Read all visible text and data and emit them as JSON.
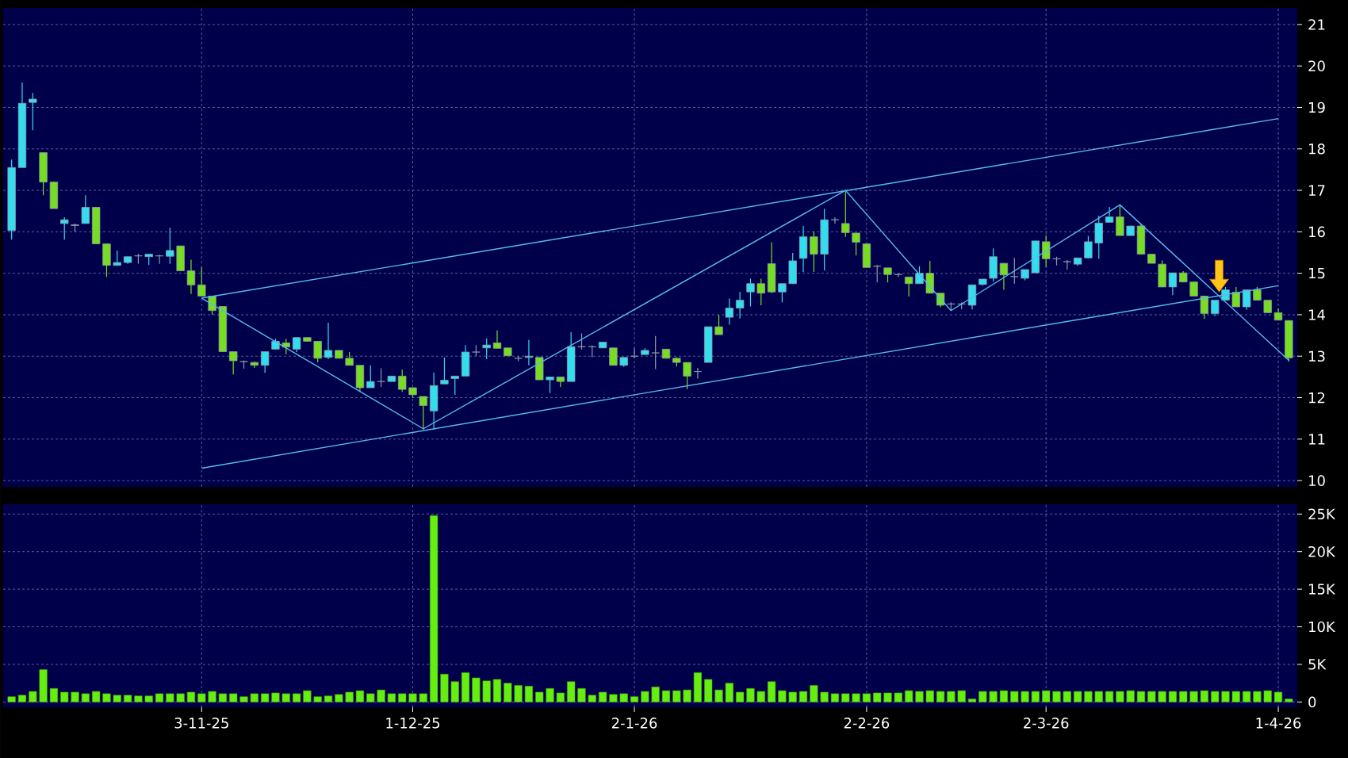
{
  "chart_data": [
    {
      "type": "candlestick",
      "categories": [
        null,
        null,
        null,
        null,
        null,
        null,
        null,
        null,
        null,
        null,
        null,
        null,
        null,
        null,
        null,
        null,
        null,
        null,
        null,
        null,
        null,
        null,
        null,
        null,
        null,
        null,
        null,
        null,
        null,
        null,
        null,
        null,
        null,
        null,
        null,
        null,
        null,
        null,
        null,
        null,
        null,
        null,
        null,
        null,
        null,
        null,
        null,
        null,
        null,
        null,
        null,
        null,
        null,
        null,
        null,
        null,
        null,
        null,
        null,
        null,
        null,
        null,
        null,
        null,
        null,
        null,
        null,
        null,
        null,
        null,
        null,
        null,
        null,
        null,
        null,
        null,
        null,
        null,
        null,
        null,
        null,
        null,
        null,
        null,
        null,
        null,
        null,
        null,
        null,
        null,
        null,
        null,
        null,
        null,
        null,
        null,
        null,
        null,
        null,
        null,
        null,
        null,
        null,
        null,
        null,
        null,
        null,
        null,
        null,
        null,
        null,
        null,
        null,
        null,
        null,
        null,
        null,
        null,
        null,
        null,
        null,
        null
      ],
      "ohlc": [
        [
          16.03,
          17.74,
          15.81,
          17.55
        ],
        [
          17.55,
          19.6,
          17.55,
          19.1
        ],
        [
          19.12,
          19.35,
          18.45,
          19.2
        ],
        [
          17.91,
          17.91,
          16.88,
          17.2
        ],
        [
          17.2,
          17.2,
          16.56,
          16.56
        ],
        [
          16.2,
          16.35,
          15.81,
          16.29
        ],
        [
          16.17,
          16.2,
          16.0,
          16.15
        ],
        [
          16.2,
          16.88,
          16.2,
          16.59
        ],
        [
          16.59,
          16.59,
          15.71,
          15.71
        ],
        [
          15.71,
          15.71,
          14.91,
          15.19
        ],
        [
          15.19,
          15.55,
          15.19,
          15.26
        ],
        [
          15.26,
          15.4,
          15.23,
          15.4
        ],
        [
          15.42,
          15.47,
          15.23,
          15.42
        ],
        [
          15.4,
          15.46,
          15.2,
          15.46
        ],
        [
          15.42,
          15.45,
          15.23,
          15.42
        ],
        [
          15.41,
          16.1,
          15.23,
          15.55
        ],
        [
          15.66,
          15.66,
          15.06,
          15.06
        ],
        [
          15.06,
          15.33,
          14.5,
          14.72
        ],
        [
          14.72,
          15.14,
          14.45,
          14.45
        ],
        [
          14.45,
          14.45,
          14.0,
          14.1
        ],
        [
          14.2,
          14.2,
          13.11,
          13.11
        ],
        [
          13.11,
          13.11,
          12.56,
          12.89
        ],
        [
          12.87,
          12.9,
          12.7,
          12.87
        ],
        [
          12.85,
          12.87,
          12.72,
          12.78
        ],
        [
          12.78,
          13.11,
          12.6,
          13.11
        ],
        [
          13.17,
          13.42,
          13.17,
          13.36
        ],
        [
          13.32,
          13.42,
          13.05,
          13.22
        ],
        [
          13.17,
          13.45,
          13.1,
          13.45
        ],
        [
          13.45,
          13.45,
          13.36,
          13.36
        ],
        [
          13.36,
          13.36,
          12.85,
          12.95
        ],
        [
          12.97,
          13.81,
          12.93,
          13.14
        ],
        [
          13.14,
          13.14,
          12.95,
          12.95
        ],
        [
          12.95,
          13.1,
          12.78,
          12.78
        ],
        [
          12.78,
          12.78,
          12.14,
          12.24
        ],
        [
          12.24,
          12.78,
          12.24,
          12.39
        ],
        [
          12.39,
          12.71,
          12.26,
          12.39
        ],
        [
          12.39,
          12.52,
          12.39,
          12.52
        ],
        [
          12.52,
          12.68,
          12.14,
          12.2
        ],
        [
          12.24,
          12.24,
          12.0,
          12.07
        ],
        [
          12.03,
          12.03,
          11.23,
          11.81
        ],
        [
          11.68,
          12.61,
          11.23,
          12.29
        ],
        [
          12.33,
          12.97,
          12.33,
          12.42
        ],
        [
          12.46,
          12.52,
          12.07,
          12.52
        ],
        [
          12.52,
          13.27,
          12.52,
          13.1
        ],
        [
          13.1,
          13.27,
          13.0,
          13.1
        ],
        [
          13.2,
          13.43,
          12.93,
          13.27
        ],
        [
          13.32,
          13.62,
          13.19,
          13.19
        ],
        [
          13.2,
          13.2,
          13.01,
          13.01
        ],
        [
          12.95,
          13.0,
          12.88,
          12.95
        ],
        [
          12.97,
          13.39,
          12.78,
          13.0
        ],
        [
          12.97,
          12.97,
          12.43,
          12.43
        ],
        [
          12.43,
          12.5,
          12.11,
          12.5
        ],
        [
          12.5,
          12.5,
          12.26,
          12.39
        ],
        [
          12.39,
          13.58,
          12.39,
          13.23
        ],
        [
          13.23,
          13.55,
          13.16,
          13.23
        ],
        [
          13.23,
          13.26,
          12.97,
          13.23
        ],
        [
          13.2,
          13.34,
          13.2,
          13.34
        ],
        [
          13.2,
          13.2,
          12.78,
          12.78
        ],
        [
          12.78,
          12.97,
          12.74,
          12.97
        ],
        [
          13.0,
          13.19,
          12.95,
          13.0
        ],
        [
          13.04,
          13.19,
          13.04,
          13.14
        ],
        [
          13.08,
          13.49,
          12.69,
          13.08
        ],
        [
          13.17,
          13.17,
          12.95,
          12.95
        ],
        [
          12.95,
          12.97,
          12.75,
          12.85
        ],
        [
          12.85,
          12.85,
          12.2,
          12.52
        ],
        [
          12.63,
          12.72,
          12.46,
          12.63
        ],
        [
          12.85,
          13.71,
          12.85,
          13.71
        ],
        [
          13.71,
          14.0,
          13.52,
          13.52
        ],
        [
          13.94,
          14.39,
          13.76,
          14.16
        ],
        [
          14.16,
          14.55,
          13.91,
          14.35
        ],
        [
          14.55,
          14.87,
          14.2,
          14.75
        ],
        [
          14.75,
          14.87,
          14.23,
          14.52
        ],
        [
          15.23,
          15.75,
          14.52,
          14.55
        ],
        [
          14.55,
          14.75,
          14.3,
          14.75
        ],
        [
          14.75,
          15.49,
          14.75,
          15.3
        ],
        [
          15.36,
          16.14,
          15.03,
          15.88
        ],
        [
          15.88,
          16.01,
          15.03,
          15.46
        ],
        [
          15.46,
          16.55,
          15.07,
          16.29
        ],
        [
          16.29,
          16.35,
          16.2,
          16.29
        ],
        [
          16.2,
          16.97,
          15.88,
          15.98
        ],
        [
          15.97,
          15.97,
          15.43,
          15.75
        ],
        [
          15.71,
          15.71,
          15.14,
          15.14
        ],
        [
          15.17,
          15.2,
          14.78,
          15.17
        ],
        [
          15.13,
          15.13,
          14.78,
          14.97
        ],
        [
          14.97,
          15.0,
          14.91,
          14.97
        ],
        [
          14.91,
          14.91,
          14.44,
          14.75
        ],
        [
          14.75,
          15.17,
          14.75,
          15.0
        ],
        [
          15.0,
          15.3,
          14.52,
          14.52
        ],
        [
          14.52,
          14.52,
          14.18,
          14.23
        ],
        [
          14.26,
          14.3,
          14.1,
          14.26
        ],
        [
          14.26,
          14.3,
          14.13,
          14.26
        ],
        [
          14.23,
          14.72,
          14.13,
          14.72
        ],
        [
          14.73,
          14.86,
          14.7,
          14.86
        ],
        [
          14.88,
          15.6,
          14.8,
          15.4
        ],
        [
          15.24,
          15.24,
          14.6,
          14.96
        ],
        [
          14.92,
          15.37,
          14.75,
          14.92
        ],
        [
          14.88,
          15.09,
          14.83,
          15.09
        ],
        [
          15.01,
          15.78,
          15.01,
          15.78
        ],
        [
          15.76,
          15.91,
          15.15,
          15.35
        ],
        [
          15.35,
          15.4,
          15.19,
          15.35
        ],
        [
          15.28,
          15.32,
          15.09,
          15.28
        ],
        [
          15.22,
          15.37,
          15.18,
          15.37
        ],
        [
          15.37,
          15.9,
          15.37,
          15.76
        ],
        [
          15.73,
          16.39,
          15.35,
          16.21
        ],
        [
          16.23,
          16.6,
          16.23,
          16.36
        ],
        [
          16.36,
          16.65,
          15.91,
          15.91
        ],
        [
          15.91,
          16.14,
          15.91,
          16.14
        ],
        [
          16.14,
          16.2,
          15.46,
          15.46
        ],
        [
          15.46,
          15.46,
          15.24,
          15.24
        ],
        [
          15.22,
          15.31,
          14.67,
          14.67
        ],
        [
          14.67,
          15.01,
          14.47,
          15.01
        ],
        [
          15.01,
          15.05,
          14.79,
          14.79
        ],
        [
          14.79,
          14.79,
          14.45,
          14.45
        ],
        [
          14.45,
          14.45,
          13.9,
          14.03
        ],
        [
          14.03,
          14.35,
          13.97,
          14.35
        ],
        [
          14.35,
          14.67,
          14.35,
          14.6
        ],
        [
          14.54,
          14.67,
          14.19,
          14.19
        ],
        [
          14.19,
          14.6,
          14.12,
          14.6
        ],
        [
          14.6,
          14.67,
          14.35,
          14.35
        ],
        [
          14.35,
          14.35,
          14.05,
          14.05
        ],
        [
          14.05,
          14.15,
          13.87,
          13.87
        ],
        [
          13.86,
          13.86,
          12.87,
          12.96
        ]
      ],
      "colors": [
        "#33dded",
        "#33dded",
        "#33dded",
        "#77dd22",
        "#77dd22",
        "#33dded",
        "#8f98a8",
        "#33dded",
        "#77dd22",
        "#77dd22",
        "#33dded",
        "#33dded",
        "#8f98a8",
        "#33dded",
        "#8f98a8",
        "#33dded",
        "#77dd22",
        "#77dd22",
        "#77dd22",
        "#77dd22",
        "#77dd22",
        "#77dd22",
        "#8f98a8",
        "#77dd22",
        "#33dded",
        "#33dded",
        "#77dd22",
        "#33dded",
        "#77dd22",
        "#77dd22",
        "#33dded",
        "#77dd22",
        "#77dd22",
        "#77dd22",
        "#33dded",
        "#8f98a8",
        "#33dded",
        "#77dd22",
        "#77dd22",
        "#77dd22",
        "#33dded",
        "#33dded",
        "#33dded",
        "#33dded",
        "#8f98a8",
        "#33dded",
        "#77dd22",
        "#77dd22",
        "#8f98a8",
        "#33dded",
        "#77dd22",
        "#33dded",
        "#77dd22",
        "#33dded",
        "#8f98a8",
        "#8f98a8",
        "#33dded",
        "#77dd22",
        "#33dded",
        "#8f98a8",
        "#33dded",
        "#8f98a8",
        "#77dd22",
        "#77dd22",
        "#77dd22",
        "#8f98a8",
        "#33dded",
        "#77dd22",
        "#33dded",
        "#33dded",
        "#33dded",
        "#77dd22",
        "#77dd22",
        "#33dded",
        "#33dded",
        "#33dded",
        "#77dd22",
        "#33dded",
        "#8f98a8",
        "#77dd22",
        "#77dd22",
        "#77dd22",
        "#8f98a8",
        "#77dd22",
        "#8f98a8",
        "#77dd22",
        "#33dded",
        "#77dd22",
        "#77dd22",
        "#8f98a8",
        "#8f98a8",
        "#33dded",
        "#33dded",
        "#33dded",
        "#77dd22",
        "#8f98a8",
        "#33dded",
        "#33dded",
        "#77dd22",
        "#8f98a8",
        "#8f98a8",
        "#33dded",
        "#33dded",
        "#33dded",
        "#33dded",
        "#77dd22",
        "#33dded",
        "#77dd22",
        "#77dd22",
        "#77dd22",
        "#33dded",
        "#77dd22",
        "#77dd22",
        "#77dd22",
        "#33dded",
        "#33dded",
        "#77dd22",
        "#33dded",
        "#77dd22",
        "#77dd22",
        "#77dd22",
        "#77dd22"
      ],
      "series": [
        {
          "type": "line",
          "values": [
            null,
            null,
            null,
            null,
            null,
            null,
            null,
            null,
            null,
            null,
            null,
            null,
            null,
            null,
            null,
            null,
            null,
            null,
            14.4,
            null,
            null,
            null,
            null,
            null,
            null,
            null,
            null,
            null,
            null,
            null,
            null,
            null,
            null,
            null,
            null,
            null,
            null,
            null,
            null,
            null,
            null,
            null,
            null,
            null,
            null,
            null,
            null,
            null,
            null,
            null,
            null,
            null,
            null,
            null,
            null,
            null,
            null,
            null,
            null,
            null,
            null,
            null,
            null,
            null,
            null,
            null,
            null,
            null,
            null,
            null,
            null,
            null,
            null,
            null,
            null,
            null,
            null,
            null,
            null,
            null,
            null,
            null,
            null,
            null,
            null,
            null,
            null,
            null,
            null,
            null,
            null,
            null,
            null,
            null,
            null,
            null,
            null,
            null,
            null,
            null,
            null,
            null,
            null,
            null,
            null,
            null,
            null,
            null,
            null,
            null,
            null,
            null,
            null,
            null,
            null,
            null,
            null,
            null,
            null,
            null,
            18.73,
            null
          ],
          "color": "#55bbee"
        },
        {
          "type": "line",
          "values": [
            null,
            null,
            null,
            null,
            null,
            null,
            null,
            null,
            null,
            null,
            null,
            null,
            null,
            null,
            null,
            null,
            null,
            null,
            10.3,
            null,
            null,
            null,
            null,
            null,
            null,
            null,
            null,
            null,
            null,
            null,
            null,
            null,
            null,
            null,
            null,
            null,
            null,
            null,
            null,
            null,
            null,
            null,
            null,
            null,
            null,
            null,
            null,
            null,
            null,
            null,
            null,
            null,
            null,
            null,
            null,
            null,
            null,
            null,
            null,
            null,
            null,
            null,
            null,
            null,
            null,
            null,
            null,
            null,
            null,
            null,
            null,
            null,
            null,
            null,
            null,
            null,
            null,
            null,
            null,
            null,
            null,
            null,
            null,
            null,
            null,
            null,
            null,
            null,
            null,
            null,
            null,
            null,
            null,
            null,
            null,
            null,
            null,
            null,
            null,
            null,
            null,
            null,
            null,
            null,
            null,
            null,
            null,
            null,
            null,
            null,
            null,
            null,
            null,
            null,
            null,
            null,
            null,
            null,
            null,
            null,
            14.7,
            null
          ],
          "color": "#55bbee"
        },
        {
          "type": "line",
          "values": [
            null,
            null,
            null,
            null,
            null,
            null,
            null,
            null,
            null,
            null,
            null,
            null,
            null,
            null,
            null,
            null,
            null,
            null,
            14.4,
            null,
            null,
            null,
            null,
            null,
            null,
            null,
            null,
            null,
            null,
            null,
            null,
            null,
            null,
            null,
            null,
            null,
            null,
            null,
            null,
            11.25,
            null,
            null,
            null,
            null,
            null,
            null,
            null,
            null,
            null,
            null,
            null,
            null,
            null,
            null,
            null,
            null,
            null,
            null,
            null,
            null,
            null,
            null,
            null,
            null,
            null,
            null,
            null,
            null,
            null,
            null,
            null,
            null,
            null,
            null,
            null,
            null,
            null,
            null,
            null,
            17.0,
            null,
            null,
            null,
            null,
            null,
            null,
            null,
            null,
            null,
            14.1,
            null,
            null,
            null,
            null,
            null,
            null,
            null,
            null,
            null,
            null,
            null,
            null,
            null,
            null,
            null,
            16.65,
            null,
            null,
            null,
            null,
            null,
            null,
            null,
            null,
            null,
            null,
            null,
            null,
            null,
            null,
            null,
            12.9
          ],
          "color": "#55bbee"
        }
      ],
      "ylim": [
        9.85,
        21.4
      ],
      "yticks": [
        10,
        11,
        12,
        13,
        14,
        15,
        16,
        17,
        18,
        19,
        20,
        21
      ],
      "grid": true,
      "tick_labels": "y"
    },
    {
      "type": "bar",
      "categories": [
        null,
        null,
        null,
        null,
        null,
        null,
        null,
        null,
        null,
        null,
        null,
        null,
        null,
        null,
        null,
        null,
        null,
        null,
        "3-11-25",
        null,
        null,
        null,
        null,
        null,
        null,
        null,
        null,
        null,
        null,
        null,
        null,
        null,
        null,
        null,
        null,
        null,
        null,
        null,
        "1-12-25",
        null,
        null,
        null,
        null,
        null,
        null,
        null,
        null,
        null,
        null,
        null,
        null,
        null,
        null,
        null,
        null,
        null,
        null,
        null,
        null,
        "2-1-26",
        null,
        null,
        null,
        null,
        null,
        null,
        null,
        null,
        null,
        null,
        null,
        null,
        null,
        null,
        null,
        null,
        null,
        null,
        null,
        null,
        null,
        "2-2-26",
        null,
        null,
        null,
        null,
        null,
        null,
        null,
        null,
        null,
        null,
        null,
        null,
        null,
        null,
        null,
        null,
        "2-3-26",
        null,
        null,
        null,
        null,
        null,
        null,
        null,
        null,
        null,
        null,
        null,
        null,
        null,
        null,
        null,
        null,
        null,
        null,
        null,
        null,
        null,
        "1-4-26",
        null
      ],
      "values": [
        700,
        900,
        1400,
        4300,
        1800,
        1300,
        1300,
        1100,
        1400,
        1100,
        900,
        900,
        800,
        800,
        1100,
        1100,
        1100,
        1300,
        1100,
        1400,
        1100,
        1100,
        700,
        1100,
        1100,
        1200,
        1100,
        1100,
        1500,
        700,
        800,
        1000,
        1300,
        1500,
        1100,
        1600,
        1100,
        1100,
        1100,
        1100,
        24800,
        3700,
        2700,
        3900,
        3200,
        2800,
        3000,
        2500,
        2200,
        2100,
        1300,
        1800,
        1200,
        2700,
        1800,
        900,
        1300,
        1000,
        1100,
        700,
        1400,
        2000,
        1500,
        1500,
        1600,
        3900,
        3000,
        1600,
        2500,
        1300,
        1800,
        1400,
        2700,
        1500,
        1300,
        1400,
        2200,
        1300,
        1100,
        1100,
        1100,
        1100,
        1200,
        1200,
        1200,
        1500,
        1400,
        1500,
        1400,
        1400,
        1500,
        400,
        1400,
        1400,
        1500,
        1400,
        1400,
        1400,
        1500,
        1400,
        1400,
        1400,
        1400,
        1400,
        1400,
        1400,
        1500,
        1400,
        1400,
        1400,
        1400,
        1400,
        1400,
        1500,
        1400,
        1400,
        1400,
        1400,
        1400,
        1500,
        1300,
        400
      ],
      "color": "#66ee11",
      "ylim": [
        -700,
        26300
      ],
      "yticks": [
        0,
        {
          "value": 5000,
          "label": "5K"
        },
        {
          "value": 10000,
          "label": "10K"
        },
        {
          "value": 15000,
          "label": "15K"
        },
        {
          "value": 20000,
          "label": "20K"
        },
        {
          "value": 25000,
          "label": "25K"
        }
      ],
      "grid": true
    }
  ]
}
